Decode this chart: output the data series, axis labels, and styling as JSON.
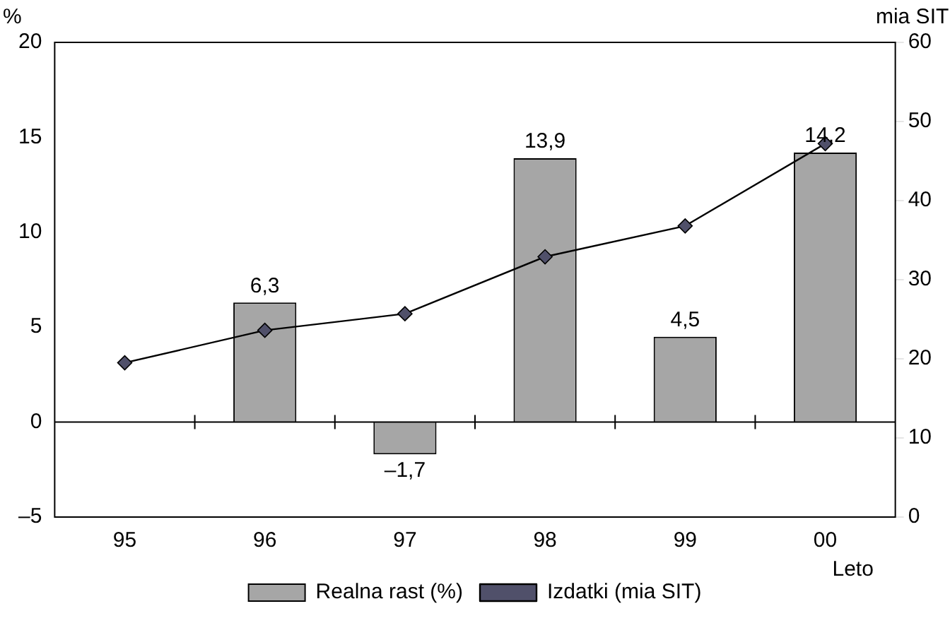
{
  "chart_data": {
    "type": "bar",
    "xlabel": "Leto",
    "ylabel": "%",
    "y2label": "mia SIT",
    "categories": [
      "95",
      "96",
      "97",
      "98",
      "99",
      "00"
    ],
    "series": [
      {
        "name": "Realna rast (%)",
        "color": "#a6a6a6",
        "values": [
          null,
          6.3,
          -1.7,
          13.9,
          4.5,
          14.2
        ],
        "value_labels": [
          null,
          "6,3",
          "–1,7",
          "13,9",
          "4,5",
          "14,2"
        ]
      },
      {
        "name": "Izdatki (mia SIT)",
        "type": "line",
        "axis": "y2",
        "color": "#000000",
        "marker": "diamond",
        "values": [
          19.5,
          23.6,
          25.7,
          32.9,
          36.8,
          47.2
        ]
      }
    ],
    "ylim": [
      -5,
      20
    ],
    "yticks": [
      {
        "value": -5,
        "label": "–5"
      },
      0,
      5,
      10,
      15,
      20
    ],
    "y2lim": [
      0,
      60
    ],
    "y2ticks": [
      0,
      10,
      20,
      30,
      40,
      50,
      60
    ],
    "ref_lines": [
      {
        "axis": "y",
        "value": 0,
        "label": null
      }
    ],
    "grid": false,
    "legend": "bottom"
  }
}
